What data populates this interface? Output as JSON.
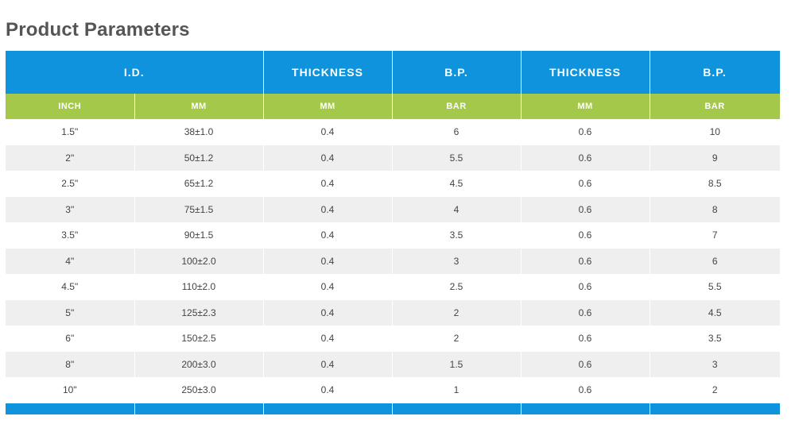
{
  "page_title": "Product Parameters",
  "table": {
    "group_headers": [
      "I.D.",
      "THICKNESS",
      "B.P.",
      "THICKNESS",
      "B.P."
    ],
    "unit_headers": [
      "INCH",
      "MM",
      "MM",
      "BAR",
      "MM",
      "BAR"
    ],
    "rows": [
      [
        "1.5\"",
        "38±1.0",
        "0.4",
        "6",
        "0.6",
        "10"
      ],
      [
        "2\"",
        "50±1.2",
        "0.4",
        "5.5",
        "0.6",
        "9"
      ],
      [
        "2.5\"",
        "65±1.2",
        "0.4",
        "4.5",
        "0.6",
        "8.5"
      ],
      [
        "3\"",
        "75±1.5",
        "0.4",
        "4",
        "0.6",
        "8"
      ],
      [
        "3.5\"",
        "90±1.5",
        "0.4",
        "3.5",
        "0.6",
        "7"
      ],
      [
        "4\"",
        "100±2.0",
        "0.4",
        "3",
        "0.6",
        "6"
      ],
      [
        "4.5\"",
        "110±2.0",
        "0.4",
        "2.5",
        "0.6",
        "5.5"
      ],
      [
        "5\"",
        "125±2.3",
        "0.4",
        "2",
        "0.6",
        "4.5"
      ],
      [
        "6\"",
        "150±2.5",
        "0.4",
        "2",
        "0.6",
        "3.5"
      ],
      [
        "8\"",
        "200±3.0",
        "0.4",
        "1.5",
        "0.6",
        "3"
      ],
      [
        "10\"",
        "250±3.0",
        "0.4",
        "1",
        "0.6",
        "2"
      ]
    ]
  },
  "colors": {
    "header_blue": "#0f93dc",
    "subheader_green": "#a4c94a",
    "title_gray": "#555555",
    "row_alt": "#efefef"
  }
}
